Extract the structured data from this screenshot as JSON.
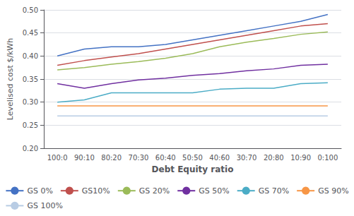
{
  "chart_data": {
    "type": "line",
    "xlabel": "Debt Equity ratio",
    "ylabel": "Levelised cost $/kWh",
    "categories": [
      "100:0",
      "90:10",
      "80:20",
      "70:30",
      "60:40",
      "50:50",
      "40:60",
      "30:70",
      "20:80",
      "10:90",
      "0:100"
    ],
    "series": [
      {
        "name": "GS 0%",
        "color": "#4472C4",
        "values": [
          0.4,
          0.415,
          0.42,
          0.42,
          0.425,
          0.435,
          0.445,
          0.455,
          0.465,
          0.475,
          0.49
        ]
      },
      {
        "name": "GS10%",
        "color": "#C0504D",
        "values": [
          0.38,
          0.39,
          0.398,
          0.405,
          0.415,
          0.425,
          0.435,
          0.445,
          0.455,
          0.465,
          0.47
        ]
      },
      {
        "name": "GS 20%",
        "color": "#9BBB59",
        "values": [
          0.37,
          0.375,
          0.382,
          0.388,
          0.395,
          0.405,
          0.42,
          0.43,
          0.438,
          0.447,
          0.452
        ]
      },
      {
        "name": "GS 50%",
        "color": "#7030A0",
        "values": [
          0.34,
          0.33,
          0.34,
          0.348,
          0.352,
          0.358,
          0.362,
          0.368,
          0.372,
          0.38,
          0.382
        ]
      },
      {
        "name": "GS 70%",
        "color": "#4BACC6",
        "values": [
          0.3,
          0.305,
          0.32,
          0.32,
          0.32,
          0.32,
          0.328,
          0.33,
          0.33,
          0.34,
          0.342
        ]
      },
      {
        "name": "GS 90%",
        "color": "#F79646",
        "values": [
          0.292,
          0.292,
          0.292,
          0.292,
          0.292,
          0.292,
          0.292,
          0.292,
          0.292,
          0.292,
          0.292
        ]
      },
      {
        "name": "GS 100%",
        "color": "#B8CCE4",
        "values": [
          0.27,
          0.27,
          0.27,
          0.27,
          0.27,
          0.27,
          0.27,
          0.27,
          0.27,
          0.27,
          0.27
        ]
      }
    ],
    "ylim": [
      0.2,
      0.5
    ],
    "yticks": [
      {
        "value": 0.2,
        "label": "0.20"
      },
      0.25,
      {
        "value": 0.3,
        "label": "0.30"
      },
      0.35,
      {
        "value": 0.4,
        "label": "0.40"
      },
      0.45,
      {
        "value": 0.5,
        "label": "0.50"
      }
    ],
    "grid": true,
    "legend": "bottom"
  }
}
